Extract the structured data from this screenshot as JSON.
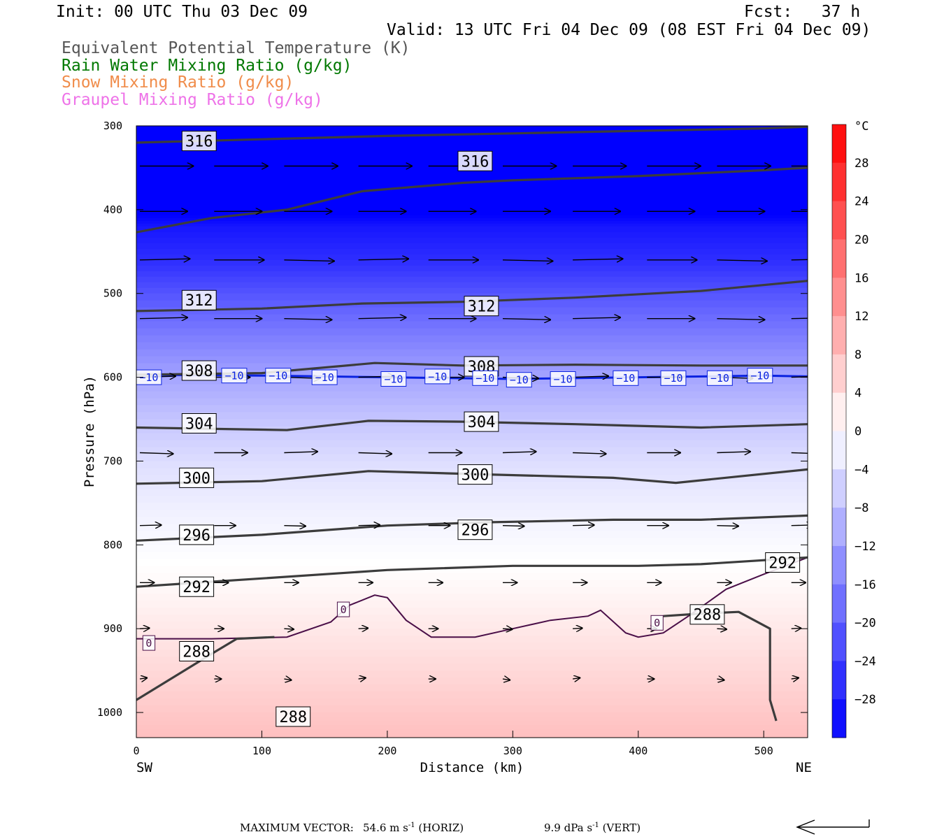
{
  "header": {
    "init": "Init: 00 UTC Thu 03 Dec 09",
    "fcst": "Fcst:   37 h",
    "valid": "Valid: 13 UTC Fri 04 Dec 09 (08 EST Fri 04 Dec 09)",
    "fields": [
      {
        "label": "Equivalent Potential Temperature (K)",
        "color": "#555555"
      },
      {
        "label": "Rain Water Mixing Ratio (g/kg)",
        "color": "#007800"
      },
      {
        "label": "Snow Mixing Ratio (g/kg)",
        "color": "#f08c4a"
      },
      {
        "label": "Graupel Mixing Ratio (g/kg)",
        "color": "#ee72e8"
      }
    ]
  },
  "chart_data": {
    "type": "cross-section",
    "xlabel": "Distance (km)",
    "ylabel": "Pressure (hPa)",
    "xlim": [
      0,
      535
    ],
    "ylim": [
      1030,
      300
    ],
    "x_ticks": [
      "0",
      "100",
      "200",
      "300",
      "400",
      "500"
    ],
    "y_ticks": [
      "300",
      "400",
      "500",
      "600",
      "700",
      "800",
      "900",
      "1000"
    ],
    "x_end_labels": {
      "left": "SW",
      "right": "NE"
    },
    "colorbar": {
      "unit": "°C",
      "min": -32,
      "max": 32,
      "step": 4,
      "labels": [
        "28",
        "24",
        "20",
        "16",
        "12",
        "8",
        "4",
        "0",
        "−4",
        "−8",
        "−12",
        "−16",
        "−20",
        "−24",
        "−28"
      ]
    },
    "temperature_bands": [
      {
        "p": 300,
        "t": -33
      },
      {
        "p": 400,
        "t": -33
      },
      {
        "p": 420,
        "t": -29
      },
      {
        "p": 460,
        "t": -26
      },
      {
        "p": 500,
        "t": -21
      },
      {
        "p": 550,
        "t": -16
      },
      {
        "p": 600,
        "t": -11
      },
      {
        "p": 650,
        "t": -7
      },
      {
        "p": 700,
        "t": -4
      },
      {
        "p": 750,
        "t": -2
      },
      {
        "p": 800,
        "t": -0.5
      },
      {
        "p": 850,
        "t": 1
      },
      {
        "p": 900,
        "t": 3
      },
      {
        "p": 950,
        "t": 5
      },
      {
        "p": 1000,
        "t": 7
      },
      {
        "p": 1030,
        "t": 8
      }
    ],
    "theta_e_contours": [
      {
        "label": "316",
        "points": [
          [
            0,
            320
          ],
          [
            100,
            316
          ],
          [
            200,
            312
          ],
          [
            300,
            309
          ],
          [
            400,
            306
          ],
          [
            500,
            303
          ],
          [
            535,
            301
          ]
        ]
      },
      {
        "label": "316",
        "points": [
          [
            0,
            427
          ],
          [
            60,
            410
          ],
          [
            120,
            400
          ],
          [
            180,
            378
          ],
          [
            260,
            368
          ],
          [
            300,
            365
          ],
          [
            400,
            360
          ],
          [
            500,
            353
          ],
          [
            535,
            350
          ]
        ]
      },
      {
        "label": "312",
        "points": [
          [
            0,
            521
          ],
          [
            100,
            518
          ],
          [
            180,
            512
          ],
          [
            260,
            510
          ],
          [
            350,
            505
          ],
          [
            450,
            497
          ],
          [
            535,
            485
          ]
        ]
      },
      {
        "label": "308",
        "points": [
          [
            0,
            597
          ],
          [
            100,
            595
          ],
          [
            190,
            583
          ],
          [
            260,
            586
          ],
          [
            350,
            585
          ],
          [
            450,
            586
          ],
          [
            535,
            586
          ]
        ]
      },
      {
        "label": "304",
        "points": [
          [
            0,
            660
          ],
          [
            120,
            663
          ],
          [
            185,
            652
          ],
          [
            260,
            653
          ],
          [
            350,
            656
          ],
          [
            450,
            660
          ],
          [
            535,
            656
          ]
        ]
      },
      {
        "label": "300",
        "points": [
          [
            0,
            727
          ],
          [
            100,
            724
          ],
          [
            185,
            712
          ],
          [
            280,
            716
          ],
          [
            380,
            720
          ],
          [
            430,
            726
          ],
          [
            535,
            710
          ]
        ]
      },
      {
        "label": "296",
        "points": [
          [
            0,
            795
          ],
          [
            100,
            788
          ],
          [
            200,
            777
          ],
          [
            280,
            773
          ],
          [
            380,
            770
          ],
          [
            450,
            770
          ],
          [
            535,
            765
          ]
        ]
      },
      {
        "label": "292",
        "points": [
          [
            0,
            850
          ],
          [
            100,
            840
          ],
          [
            200,
            830
          ],
          [
            300,
            825
          ],
          [
            400,
            825
          ],
          [
            450,
            823
          ],
          [
            535,
            815
          ]
        ]
      },
      {
        "label": "288",
        "points": [
          [
            0,
            985
          ],
          [
            60,
            930
          ],
          [
            80,
            912
          ],
          [
            110,
            910
          ]
        ]
      },
      {
        "label": "288",
        "points": [
          [
            420,
            885
          ],
          [
            450,
            882
          ],
          [
            480,
            880
          ],
          [
            505,
            900
          ],
          [
            505,
            985
          ],
          [
            510,
            1010
          ]
        ]
      }
    ],
    "zero_isotherm": {
      "label": "0",
      "points": [
        [
          0,
          912
        ],
        [
          60,
          912
        ],
        [
          120,
          910
        ],
        [
          155,
          892
        ],
        [
          170,
          872
        ],
        [
          190,
          860
        ],
        [
          200,
          863
        ],
        [
          215,
          890
        ],
        [
          235,
          910
        ],
        [
          270,
          910
        ],
        [
          300,
          900
        ],
        [
          330,
          890
        ],
        [
          360,
          885
        ],
        [
          370,
          878
        ],
        [
          390,
          905
        ],
        [
          400,
          910
        ],
        [
          420,
          905
        ],
        [
          440,
          885
        ],
        [
          470,
          853
        ],
        [
          500,
          835
        ],
        [
          535,
          815
        ]
      ]
    },
    "minus10_isotherm": {
      "label": "−10",
      "points": [
        [
          0,
          597
        ],
        [
          100,
          598
        ],
        [
          200,
          600
        ],
        [
          300,
          602
        ],
        [
          400,
          600
        ],
        [
          500,
          598
        ],
        [
          535,
          599
        ]
      ]
    },
    "wind_vector_rows": [
      {
        "p": 348,
        "dx": 45,
        "dy": 0
      },
      {
        "p": 402,
        "dx": 40,
        "dy": 0
      },
      {
        "p": 460,
        "dx": 42,
        "dy": 2
      },
      {
        "p": 530,
        "dx": 40,
        "dy": 2
      },
      {
        "p": 600,
        "dx": 30,
        "dy": 2
      },
      {
        "p": 690,
        "dx": 28,
        "dy": -2
      },
      {
        "p": 777,
        "dx": 18,
        "dy": 1
      },
      {
        "p": 845,
        "dx": 12,
        "dy": 0
      },
      {
        "p": 900,
        "dx": 8,
        "dy": 1
      },
      {
        "p": 960,
        "dx": 6,
        "dy": 2
      }
    ]
  },
  "footer": {
    "max_vector_label": "MAXIMUM VECTOR:",
    "horiz_value": "54.6 m s",
    "horiz_suffix": " (HORIZ)",
    "vert_value": "9.9 dPa s",
    "vert_suffix": " (VERT)",
    "exponent": "-1"
  }
}
